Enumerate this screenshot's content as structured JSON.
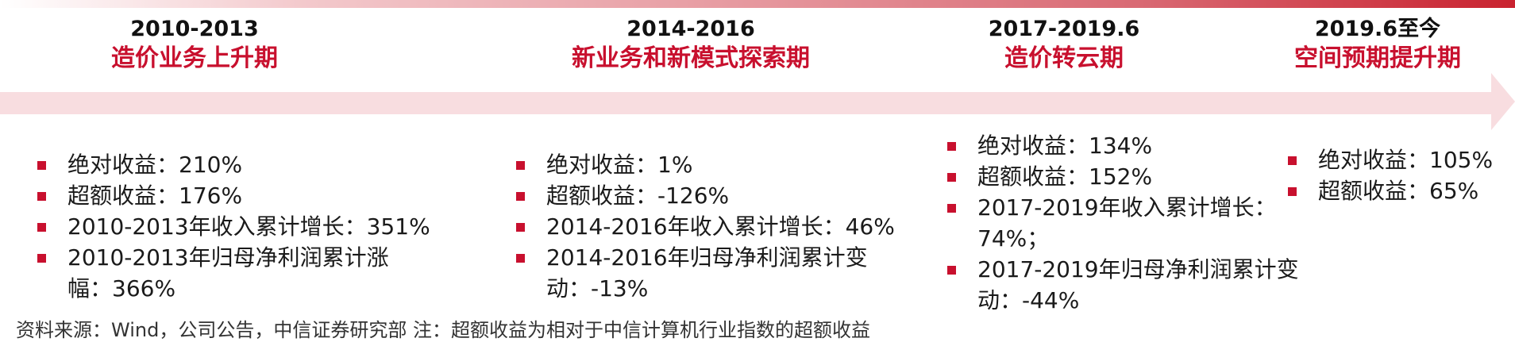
{
  "phases": [
    {
      "period": "2010-2013",
      "name": "造价业务上升期",
      "bullets": [
        "绝对收益：210%",
        "超额收益：176%",
        "2010-2013年收入累计增长：351%",
        "2010-2013年归母净利润累计涨幅：366%"
      ]
    },
    {
      "period": "2014-2016",
      "name": "新业务和新模式探索期",
      "bullets": [
        "绝对收益：1%",
        "超额收益：-126%",
        "2014-2016年收入累计增长：46%",
        "2014-2016年归母净利润累计变动：-13%"
      ]
    },
    {
      "period": "2017-2019.6",
      "name": "造价转云期",
      "bullets": [
        "绝对收益：134%",
        "超额收益：152%",
        "2017-2019年收入累计增长：74%；",
        "2017-2019年归母净利润累计变动：-44%"
      ]
    },
    {
      "period": "2019.6至今",
      "name": "空间预期提升期",
      "bullets": [
        "绝对收益：105%",
        "超额收益：65%"
      ]
    }
  ],
  "source_note": "资料来源：Wind，公司公告，中信证券研究部  注：超额收益为相对于中信计算机行业指数的超额收益",
  "colors": {
    "accent_red": "#c8102e",
    "arrow_fill": "#f8dde0"
  }
}
